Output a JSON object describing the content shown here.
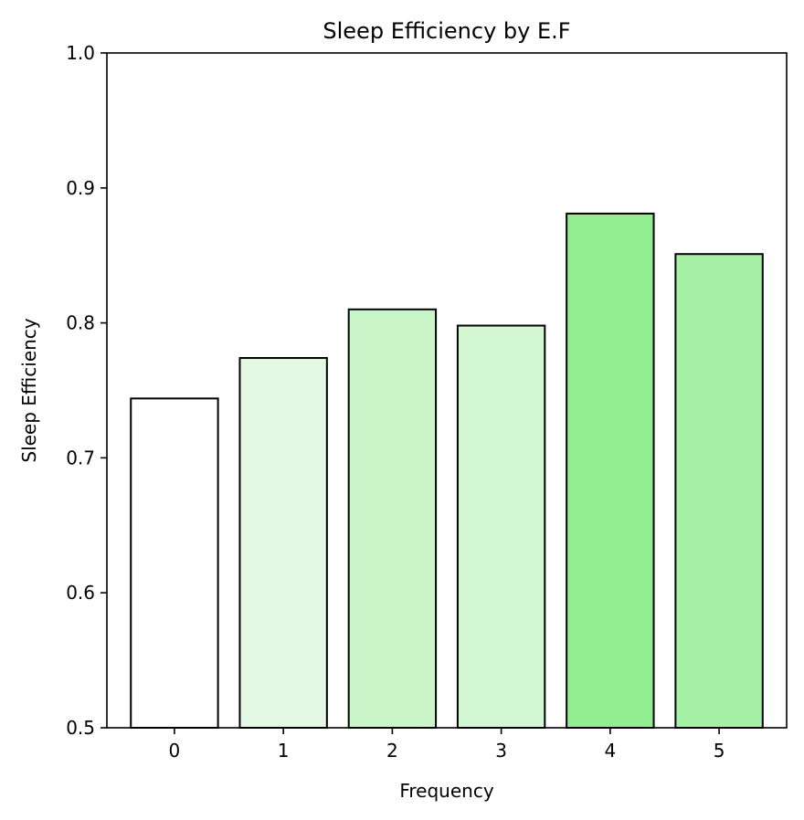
{
  "chart_data": {
    "type": "bar",
    "title": "Sleep Efficiency by E.F",
    "xlabel": "Frequency",
    "ylabel": "Sleep Efficiency",
    "categories": [
      "0",
      "1",
      "2",
      "3",
      "4",
      "5"
    ],
    "values": [
      0.744,
      0.774,
      0.81,
      0.798,
      0.881,
      0.851
    ],
    "bar_colors": [
      "#ffffff",
      "#e3f9e3",
      "#c9f5c9",
      "#d3f6d3",
      "#90ee90",
      "#a5f0a5"
    ],
    "edge_color": "#000000",
    "ylim": [
      0.5,
      1.0
    ],
    "yticks": [
      "0.5",
      "0.6",
      "0.7",
      "0.8",
      "0.9",
      "1.0"
    ],
    "grid": false,
    "legend": "none"
  }
}
